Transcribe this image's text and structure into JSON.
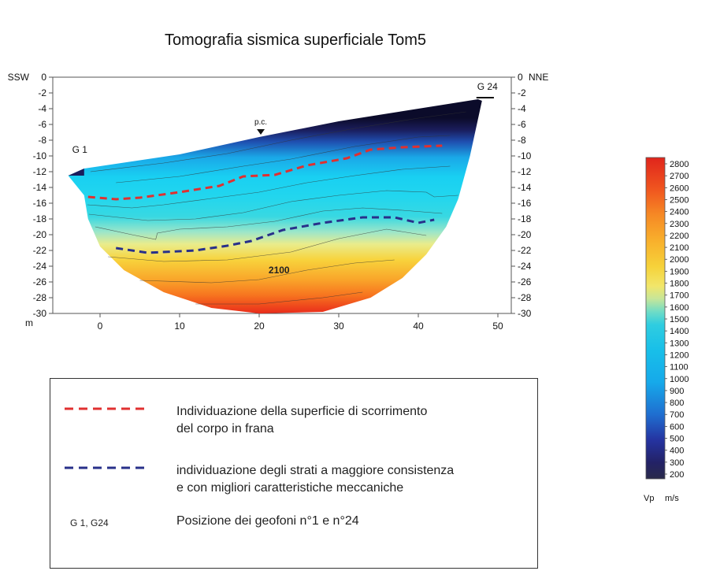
{
  "chart_data": {
    "type": "heatmap",
    "title": "Tomografia sismica superficiale Tom5",
    "x_axis": {
      "unit_label": "m",
      "range": [
        -5,
        52
      ],
      "ticks": [
        0,
        10,
        20,
        30,
        40,
        50
      ]
    },
    "y_axis": {
      "range": [
        -30,
        0
      ],
      "ticks": [
        0,
        -2,
        -4,
        -6,
        -8,
        -10,
        -12,
        -14,
        -16,
        -18,
        -20,
        -22,
        -24,
        -26,
        -28,
        -30
      ],
      "left_end_label": "SSW",
      "right_end_label": "NNE"
    },
    "markers": {
      "g1": "G 1",
      "g24": "G 24",
      "pc": "p.c."
    },
    "contour_label": "2100",
    "topography": [
      [
        -4.0,
        -12.5
      ],
      [
        -2.0,
        -11.6
      ],
      [
        10,
        -9.8
      ],
      [
        20,
        -7.6
      ],
      [
        30,
        -5.6
      ],
      [
        40,
        -4.0
      ],
      [
        47.5,
        -2.8
      ]
    ],
    "lower_boundary": [
      [
        -2.0,
        -15.0
      ],
      [
        -1.5,
        -18.0
      ],
      [
        0,
        -21.5
      ],
      [
        3,
        -24.5
      ],
      [
        8,
        -27.3
      ],
      [
        14,
        -29.3
      ],
      [
        20,
        -30.0
      ],
      [
        28,
        -29.8
      ],
      [
        34,
        -28.0
      ],
      [
        38,
        -25.5
      ],
      [
        41,
        -22.5
      ],
      [
        43.5,
        -19.0
      ],
      [
        45,
        -15.5
      ],
      [
        46.5,
        -10.0
      ],
      [
        48,
        -3.0
      ]
    ],
    "red_line": [
      [
        -1.5,
        -15.2
      ],
      [
        2,
        -15.5
      ],
      [
        5,
        -15.3
      ],
      [
        10,
        -14.6
      ],
      [
        15,
        -13.8
      ],
      [
        18,
        -12.6
      ],
      [
        22,
        -12.4
      ],
      [
        26,
        -11.2
      ],
      [
        31,
        -10.3
      ],
      [
        34,
        -9.2
      ],
      [
        38,
        -8.9
      ],
      [
        43,
        -8.7
      ]
    ],
    "blue_line": [
      [
        2,
        -21.7
      ],
      [
        6,
        -22.3
      ],
      [
        12,
        -22.0
      ],
      [
        16,
        -21.4
      ],
      [
        19,
        -20.8
      ],
      [
        23,
        -19.4
      ],
      [
        28,
        -18.5
      ],
      [
        33,
        -17.8
      ],
      [
        37,
        -17.8
      ],
      [
        40,
        -18.5
      ],
      [
        42,
        -18.1
      ]
    ],
    "colorbar": {
      "min": 200,
      "max": 2800,
      "ticks": [
        2800,
        2700,
        2600,
        2500,
        2400,
        2300,
        2200,
        2100,
        2000,
        1900,
        1800,
        1700,
        1600,
        1500,
        1400,
        1300,
        1200,
        1100,
        1000,
        900,
        800,
        700,
        600,
        500,
        400,
        300,
        200
      ],
      "label": "Vp",
      "unit": "m/s"
    }
  },
  "legend": {
    "red_text_1": "Individuazione della superficie di scorrimento",
    "red_text_2": "del corpo in frana",
    "blue_text_1": "individuazione degli strati a maggiore consistenza",
    "blue_text_2": "e con migliori caratteristiche meccaniche",
    "geo_short": "G 1, G24",
    "geo_text": "Posizione dei geofoni n°1 e n°24"
  },
  "colors": {
    "red_dash": "#e03030",
    "blue_dash": "#28308a",
    "frame": "#555555"
  }
}
